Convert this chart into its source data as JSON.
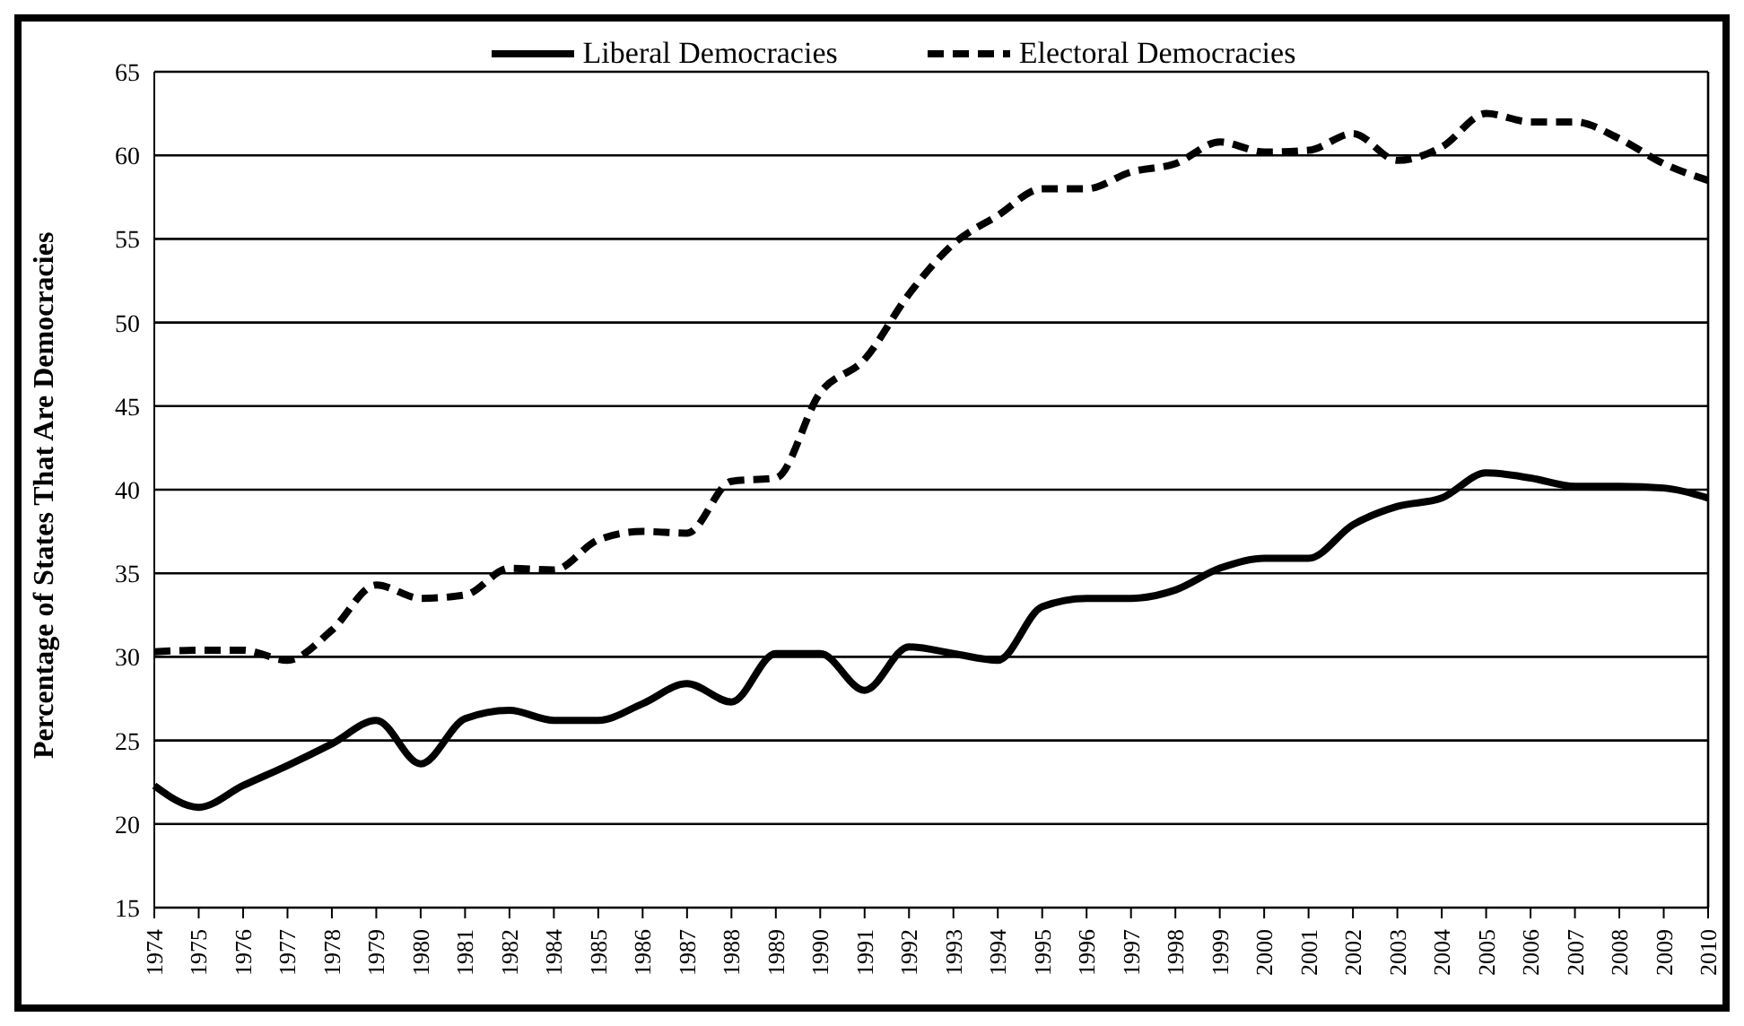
{
  "chart_data": {
    "type": "line",
    "ylabel": "Percentage of States That Are Democracies",
    "categories": [
      "1974",
      "1975",
      "1976",
      "1977",
      "1978",
      "1979",
      "1980",
      "1981",
      "1982",
      "1984",
      "1985",
      "1986",
      "1987",
      "1988",
      "1989",
      "1990",
      "1991",
      "1992",
      "1993",
      "1994",
      "1995",
      "1996",
      "1997",
      "1998",
      "1999",
      "2000",
      "2001",
      "2002",
      "2003",
      "2004",
      "2005",
      "2006",
      "2007",
      "2008",
      "2009",
      "2010"
    ],
    "series": [
      {
        "name": "Liberal Democracies",
        "color": "#000000",
        "line_style": "solid",
        "values": [
          22.3,
          21,
          22.3,
          23.5,
          24.8,
          26.2,
          23.6,
          26.3,
          26.8,
          26.2,
          26.2,
          27.2,
          28.4,
          27.3,
          30.2,
          30.2,
          28,
          30.6,
          30.2,
          29.8,
          33,
          33.5,
          33.5,
          34,
          35.3,
          35.9,
          35.9,
          37.9,
          39,
          39.5,
          41,
          40.7,
          40.2,
          40.2,
          40.1,
          39.5
        ]
      },
      {
        "name": "Electoral Democracies",
        "color": "#000000",
        "line_style": "dashed",
        "values": [
          30.3,
          30.4,
          30.4,
          29.8,
          31.6,
          34.3,
          33.5,
          33.7,
          35.3,
          35.2,
          37,
          37.5,
          37.4,
          40.5,
          40.7,
          45.8,
          47.8,
          51.7,
          54.7,
          56.4,
          58,
          58,
          59,
          59.5,
          60.8,
          60.2,
          60.3,
          61.3,
          59.7,
          60.5,
          62.5,
          62,
          62,
          61,
          59.5,
          58.5
        ]
      }
    ],
    "ylim": [
      15,
      65
    ],
    "yticks": [
      15,
      20,
      25,
      30,
      35,
      40,
      45,
      50,
      55,
      60,
      65
    ],
    "grid": "y",
    "legend": "top",
    "marker": "none"
  }
}
